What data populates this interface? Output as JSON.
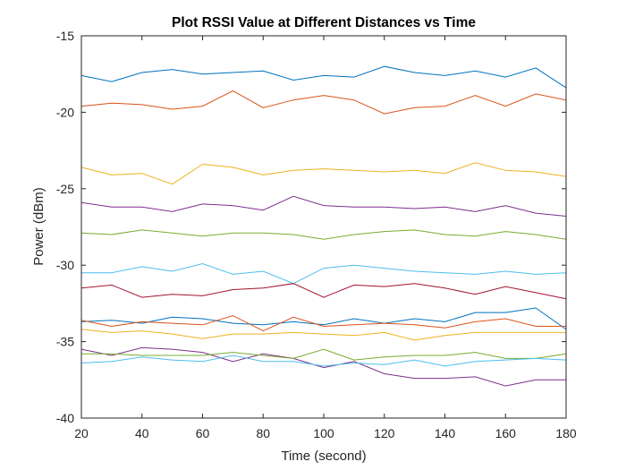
{
  "chart_data": {
    "type": "line",
    "title": "Plot RSSI Value at Different Distances vs Time",
    "xlabel": "Time (second)",
    "ylabel": "Power (dBm)",
    "xlim": [
      20,
      180
    ],
    "ylim": [
      -40,
      -15
    ],
    "xticks": [
      20,
      40,
      60,
      80,
      100,
      120,
      140,
      160,
      180
    ],
    "yticks": [
      -40,
      -35,
      -30,
      -25,
      -20,
      -15
    ],
    "xtick_labels": [
      "20",
      "40",
      "60",
      "80",
      "100",
      "120",
      "140",
      "160",
      "180"
    ],
    "ytick_labels": [
      "-40",
      "-35",
      "-30",
      "-25",
      "-20",
      "-15"
    ],
    "grid": false,
    "x": [
      20,
      30,
      40,
      50,
      60,
      70,
      80,
      90,
      100,
      110,
      120,
      130,
      140,
      150,
      160,
      170,
      180
    ],
    "series": [
      {
        "color": "#0072BD",
        "values": [
          -17.6,
          -18.0,
          -17.4,
          -17.2,
          -17.5,
          -17.4,
          -17.3,
          -17.9,
          -17.6,
          -17.7,
          -17.0,
          -17.4,
          -17.6,
          -17.3,
          -17.7,
          -17.1,
          -18.4
        ]
      },
      {
        "color": "#D95319",
        "values": [
          -19.6,
          -19.4,
          -19.5,
          -19.8,
          -19.6,
          -18.6,
          -19.7,
          -19.2,
          -18.9,
          -19.2,
          -20.1,
          -19.7,
          -19.6,
          -18.9,
          -19.6,
          -18.8,
          -19.2
        ]
      },
      {
        "color": "#EDB120",
        "values": [
          -23.6,
          -24.1,
          -24.0,
          -24.7,
          -23.4,
          -23.6,
          -24.1,
          -23.8,
          -23.7,
          -23.8,
          -23.9,
          -23.8,
          -24.0,
          -23.3,
          -23.8,
          -23.9,
          -24.2
        ]
      },
      {
        "color": "#7E2F8E",
        "values": [
          -25.9,
          -26.2,
          -26.2,
          -26.5,
          -26.0,
          -26.1,
          -26.4,
          -25.5,
          -26.1,
          -26.2,
          -26.2,
          -26.3,
          -26.2,
          -26.5,
          -26.1,
          -26.6,
          -26.8
        ]
      },
      {
        "color": "#77AC30",
        "values": [
          -27.9,
          -28.0,
          -27.7,
          -27.9,
          -28.1,
          -27.9,
          -27.9,
          -28.0,
          -28.3,
          -28.0,
          -27.8,
          -27.7,
          -28.0,
          -28.1,
          -27.8,
          -28.0,
          -28.3
        ]
      },
      {
        "color": "#4DBEEE",
        "values": [
          -30.5,
          -30.5,
          -30.1,
          -30.4,
          -29.9,
          -30.6,
          -30.4,
          -31.2,
          -30.2,
          -30.0,
          -30.2,
          -30.4,
          -30.5,
          -30.6,
          -30.4,
          -30.6,
          -30.5
        ]
      },
      {
        "color": "#A2142F",
        "values": [
          -31.5,
          -31.3,
          -32.1,
          -31.9,
          -32.0,
          -31.6,
          -31.5,
          -31.2,
          -32.1,
          -31.3,
          -31.4,
          -31.2,
          -31.5,
          -31.9,
          -31.4,
          -31.8,
          -32.2
        ]
      },
      {
        "color": "#0072BD",
        "values": [
          -33.7,
          -33.6,
          -33.8,
          -33.4,
          -33.5,
          -33.8,
          -33.9,
          -33.7,
          -33.9,
          -33.5,
          -33.8,
          -33.5,
          -33.7,
          -33.1,
          -33.1,
          -32.8,
          -34.2
        ]
      },
      {
        "color": "#D95319",
        "values": [
          -33.6,
          -34.0,
          -33.7,
          -33.8,
          -33.9,
          -33.3,
          -34.3,
          -33.4,
          -34.0,
          -33.9,
          -33.8,
          -33.9,
          -34.1,
          -33.7,
          -33.5,
          -34.0,
          -34.0
        ]
      },
      {
        "color": "#EDB120",
        "values": [
          -34.2,
          -34.4,
          -34.3,
          -34.5,
          -34.8,
          -34.5,
          -34.5,
          -34.4,
          -34.5,
          -34.6,
          -34.4,
          -34.9,
          -34.6,
          -34.4,
          -34.4,
          -34.4,
          -34.4
        ]
      },
      {
        "color": "#7E2F8E",
        "values": [
          -35.5,
          -35.9,
          -35.4,
          -35.5,
          -35.7,
          -36.3,
          -35.8,
          -36.1,
          -36.7,
          -36.3,
          -37.1,
          -37.4,
          -37.4,
          -37.3,
          -37.9,
          -37.5,
          -37.5
        ]
      },
      {
        "color": "#77AC30",
        "values": [
          -35.8,
          -35.8,
          -35.9,
          -35.9,
          -35.9,
          -35.7,
          -35.9,
          -36.1,
          -35.5,
          -36.2,
          -36.0,
          -35.9,
          -35.9,
          -35.7,
          -36.1,
          -36.1,
          -35.8
        ]
      },
      {
        "color": "#4DBEEE",
        "values": [
          -36.4,
          -36.3,
          -36.0,
          -36.2,
          -36.3,
          -35.9,
          -36.3,
          -36.3,
          -36.6,
          -36.4,
          -36.5,
          -36.2,
          -36.6,
          -36.3,
          -36.2,
          -36.1,
          -36.2
        ]
      }
    ]
  }
}
